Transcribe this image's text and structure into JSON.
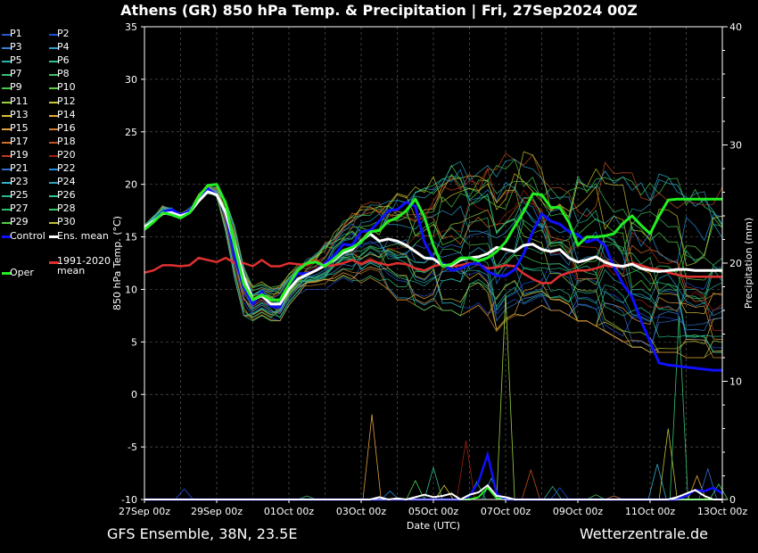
{
  "title": "Athens  (GR)  850 hPa Temp. & Precipitation | Fri, 27Sep2024 00Z",
  "footer": {
    "source": "GFS Ensemble, 38N, 23.5E",
    "site": "Wetterzentrale.de"
  },
  "colors": {
    "background": "#000000",
    "grid": "#555555",
    "control": "#1010ff",
    "ens_mean": "#ffffff",
    "climate": "#e03030",
    "oper": "#22ee22"
  },
  "legend": [
    {
      "label": "P1",
      "color": "#2a55d4"
    },
    {
      "label": "P2",
      "color": "#1a4fe0"
    },
    {
      "label": "P3",
      "color": "#3a7fd6"
    },
    {
      "label": "P4",
      "color": "#2a9fd0"
    },
    {
      "label": "P5",
      "color": "#2ab0a8"
    },
    {
      "label": "P6",
      "color": "#2fc090"
    },
    {
      "label": "P7",
      "color": "#36c270"
    },
    {
      "label": "P8",
      "color": "#40c060"
    },
    {
      "label": "P9",
      "color": "#46c84a"
    },
    {
      "label": "P10",
      "color": "#58d040"
    },
    {
      "label": "P11",
      "color": "#9cd040"
    },
    {
      "label": "P12",
      "color": "#c8c838"
    },
    {
      "label": "P13",
      "color": "#d8c030"
    },
    {
      "label": "P14",
      "color": "#e0a838"
    },
    {
      "label": "P15",
      "color": "#e0a040"
    },
    {
      "label": "P16",
      "color": "#d08030"
    },
    {
      "label": "P17",
      "color": "#d07028"
    },
    {
      "label": "P18",
      "color": "#c05020"
    },
    {
      "label": "P19",
      "color": "#c03818"
    },
    {
      "label": "P20",
      "color": "#a02010"
    },
    {
      "label": "P21",
      "color": "#3070d0"
    },
    {
      "label": "P22",
      "color": "#2090e0"
    },
    {
      "label": "P23",
      "color": "#30b0d0"
    },
    {
      "label": "P24",
      "color": "#30a0b8"
    },
    {
      "label": "P25",
      "color": "#28b890"
    },
    {
      "label": "P26",
      "color": "#30c890"
    },
    {
      "label": "P27",
      "color": "#28c070"
    },
    {
      "label": "P28",
      "color": "#38c860"
    },
    {
      "label": "P29",
      "color": "#50d048"
    },
    {
      "label": "P30",
      "color": "#c0c030"
    },
    {
      "label": "Control",
      "color": "#1010ff"
    },
    {
      "label": "Ens. mean",
      "color": "#ffffff"
    },
    {
      "label": "Oper",
      "color": "#22ee22"
    },
    {
      "label": "1991-2020 mean",
      "color": "#e03030"
    }
  ],
  "chart_data": {
    "type": "line",
    "ylabel": "850 hPa Temp. (°C)",
    "y2label": "Precipitation (mm)",
    "xlabel": "Date (UTC)",
    "ylim": [
      -10,
      35
    ],
    "y2lim": [
      0,
      40
    ],
    "yticks": [
      -10,
      -5,
      0,
      5,
      10,
      15,
      20,
      25,
      30,
      35
    ],
    "y2ticks": [
      0,
      10,
      20,
      30,
      40
    ],
    "x_ticks": [
      "27Sep 00z",
      "29Sep 00z",
      "01Oct 00z",
      "03Oct 00z",
      "05Oct 00z",
      "07Oct 00z",
      "09Oct 00z",
      "11Oct 00z",
      "13Oct 00z"
    ],
    "x_range_days": [
      0,
      16
    ],
    "grid": true,
    "x_days": [
      0,
      0.25,
      0.5,
      0.75,
      1,
      1.25,
      1.5,
      1.75,
      2,
      2.25,
      2.5,
      2.75,
      3,
      3.25,
      3.5,
      3.75,
      4,
      4.25,
      4.5,
      4.75,
      5,
      5.25,
      5.5,
      5.75,
      6,
      6.25,
      6.5,
      6.75,
      7,
      7.25,
      7.5,
      7.75,
      8,
      8.25,
      8.5,
      8.75,
      9,
      9.25,
      9.5,
      9.75,
      10,
      10.25,
      10.5,
      10.75,
      11,
      11.25,
      11.5,
      11.75,
      12,
      12.25,
      12.5,
      12.75,
      13,
      13.25,
      13.5,
      13.75,
      14,
      14.25,
      14.5,
      14.75,
      15,
      15.25,
      15.5,
      15.75,
      16
    ],
    "series": [
      {
        "name": "Control",
        "role": "control",
        "values": [
          15.8,
          16.5,
          17.4,
          17.6,
          17.1,
          17.5,
          18.7,
          19.6,
          19.0,
          17.2,
          13.0,
          10.2,
          8.6,
          9.8,
          8.4,
          8.3,
          10.5,
          11.5,
          11.5,
          11.8,
          12.5,
          13.2,
          14.3,
          14.2,
          15.5,
          15.6,
          16.5,
          17.5,
          17.6,
          18.3,
          17.9,
          14.5,
          12.9,
          12.5,
          11.8,
          12.0,
          12.4,
          12.5,
          11.7,
          11.3,
          11.3,
          11.9,
          13.4,
          15.5,
          17.2,
          16.5,
          16.2,
          15.5,
          15.2,
          14.5,
          14.8,
          14.2,
          12.1,
          10.5,
          9.3,
          7.0,
          5.0,
          3.0,
          2.8,
          2.7,
          2.6,
          2.5,
          2.4,
          2.3,
          2.3
        ]
      },
      {
        "name": "Ens. mean",
        "role": "mean",
        "values": [
          15.9,
          16.5,
          17.2,
          17.3,
          17.0,
          17.3,
          18.4,
          19.3,
          19.0,
          17.3,
          14.2,
          11.2,
          9.0,
          9.4,
          8.6,
          8.6,
          10.0,
          11.0,
          11.4,
          11.8,
          12.3,
          12.8,
          13.5,
          13.8,
          14.6,
          15.3,
          14.6,
          14.8,
          14.6,
          14.2,
          13.6,
          13.0,
          12.9,
          12.3,
          12.3,
          12.8,
          13.0,
          13.1,
          13.4,
          14.0,
          13.8,
          13.6,
          14.2,
          14.3,
          13.8,
          13.6,
          13.8,
          13.0,
          12.6,
          12.8,
          13.1,
          12.6,
          12.3,
          12.2,
          12.4,
          12.0,
          11.8,
          11.7,
          11.8,
          11.9,
          11.9,
          11.8,
          11.8,
          11.8,
          11.8
        ]
      },
      {
        "name": "Oper",
        "role": "oper",
        "values": [
          15.7,
          16.4,
          17.3,
          17.1,
          16.8,
          17.3,
          18.8,
          19.9,
          20.0,
          18.2,
          14.0,
          10.5,
          9.0,
          9.5,
          9.0,
          9.0,
          10.5,
          11.8,
          12.5,
          12.6,
          12.2,
          12.9,
          13.7,
          14.0,
          14.5,
          15.5,
          15.6,
          16.5,
          16.8,
          17.5,
          18.6,
          16.9,
          14.2,
          12.2,
          12.4,
          13.0,
          13.0,
          12.7,
          13.0,
          13.6,
          14.5,
          16.0,
          17.4,
          19.1,
          19.0,
          17.8,
          17.8,
          16.4,
          14.2,
          15.0,
          15.0,
          15.1,
          15.3,
          16.3,
          17.0,
          16.1,
          15.3,
          17.0,
          18.5,
          18.6,
          18.6,
          18.6,
          18.6,
          18.6,
          18.6
        ]
      },
      {
        "name": "1991-2020 mean",
        "role": "climate",
        "values": [
          11.6,
          11.8,
          12.3,
          12.3,
          12.2,
          12.3,
          13.0,
          12.8,
          12.6,
          13.0,
          12.5,
          12.5,
          12.2,
          12.8,
          12.2,
          12.2,
          12.5,
          12.4,
          12.3,
          12.8,
          12.2,
          12.3,
          12.5,
          12.8,
          12.4,
          12.8,
          12.5,
          12.3,
          12.5,
          12.4,
          12.0,
          11.8,
          12.2,
          12.4,
          12.2,
          12.3,
          12.5,
          12.4,
          12.0,
          12.1,
          12.3,
          12.2,
          11.5,
          11.0,
          10.6,
          10.6,
          11.3,
          11.6,
          11.8,
          11.8,
          12.0,
          12.3,
          12.1,
          12.2,
          12.5,
          12.3,
          12.0,
          11.9,
          11.6,
          11.4,
          11.2,
          11.2,
          11.2,
          11.2,
          11.2
        ]
      }
    ],
    "ensemble_spread": {
      "members": 30,
      "upper_envelope": [
        16.5,
        17.5,
        18.5,
        18.2,
        17.6,
        18.2,
        19.8,
        20.5,
        20.5,
        18.8,
        16.2,
        12.5,
        10.5,
        11.0,
        10.5,
        10.5,
        11.5,
        12.5,
        13.0,
        13.5,
        14.5,
        15.5,
        16.5,
        17.5,
        18.0,
        18.5,
        18.5,
        19.0,
        19.5,
        19.5,
        20.0,
        20.5,
        21.0,
        21.5,
        22.0,
        22.5,
        22.0,
        22.0,
        22.5,
        22.0,
        23.0,
        23.5,
        24.0,
        23.0,
        21.5,
        21.0,
        21.0,
        20.5,
        21.0,
        21.5,
        22.0,
        22.5,
        22.5,
        22.0,
        21.5,
        21.0,
        21.0,
        21.5,
        21.5,
        21.0,
        20.5,
        20.5,
        20.0,
        20.0,
        20.0
      ],
      "lower_envelope": [
        15.3,
        15.8,
        16.8,
        16.8,
        16.5,
        16.8,
        17.8,
        18.5,
        18.0,
        15.5,
        11.0,
        7.5,
        7.0,
        7.5,
        7.0,
        7.0,
        8.5,
        9.5,
        10.0,
        10.0,
        10.0,
        10.5,
        11.0,
        10.5,
        10.5,
        11.0,
        10.5,
        10.0,
        9.0,
        9.0,
        8.5,
        8.0,
        8.5,
        8.0,
        8.0,
        7.5,
        8.0,
        8.5,
        7.5,
        6.0,
        7.0,
        7.5,
        7.5,
        8.0,
        8.5,
        8.0,
        8.0,
        7.5,
        7.0,
        7.0,
        6.5,
        6.0,
        5.5,
        5.0,
        4.5,
        4.5,
        4.0,
        4.0,
        4.0,
        4.0,
        3.5,
        3.5,
        3.5,
        3.5,
        3.5
      ]
    },
    "precipitation": {
      "ens_mean_mm": [
        0,
        0,
        0,
        0,
        0,
        0,
        0,
        0,
        0,
        0,
        0,
        0,
        0,
        0,
        0,
        0,
        0,
        0,
        0,
        0,
        0,
        0,
        0,
        0,
        0,
        0,
        0.2,
        0,
        0.1,
        0,
        0.2,
        0.4,
        0.2,
        0.3,
        0.5,
        0,
        0.4,
        0.6,
        1.2,
        0.3,
        0.2,
        0,
        0,
        0,
        0,
        0,
        0,
        0,
        0,
        0,
        0,
        0,
        0,
        0,
        0,
        0,
        0,
        0,
        0,
        0.2,
        0.5,
        0.8,
        0.3,
        0,
        0
      ],
      "control_mm": [
        0,
        0,
        0,
        0,
        0,
        0,
        0,
        0,
        0,
        0,
        0,
        0,
        0,
        0,
        0,
        0,
        0,
        0,
        0,
        0,
        0,
        0,
        0,
        0,
        0,
        0,
        0,
        0,
        0,
        0,
        0,
        0,
        0,
        0,
        0,
        0,
        0.3,
        1.5,
        3.8,
        0.5,
        0,
        0,
        0,
        0,
        0,
        0,
        0,
        0,
        0,
        0,
        0,
        0,
        0,
        0,
        0,
        0,
        0,
        0,
        0,
        0,
        0.3,
        0.8,
        0.7,
        1.0,
        0.5
      ],
      "oper_mm": [
        0,
        0,
        0,
        0,
        0,
        0,
        0,
        0,
        0,
        0,
        0,
        0,
        0,
        0,
        0,
        0,
        0,
        0,
        0,
        0,
        0,
        0,
        0,
        0,
        0,
        0,
        0,
        0,
        0,
        0,
        0,
        0,
        0,
        0,
        0,
        0,
        0,
        0.2,
        1.0,
        0.1,
        0,
        0,
        0,
        0,
        0,
        0,
        0,
        0,
        0,
        0,
        0,
        0,
        0,
        0,
        0,
        0,
        0,
        0,
        0,
        0,
        0,
        0,
        0,
        0,
        0
      ],
      "member_spikes_mm": [
        {
          "day": 1.1,
          "mm": 0.9
        },
        {
          "day": 4.5,
          "mm": 0.3
        },
        {
          "day": 6.3,
          "mm": 7.2
        },
        {
          "day": 6.8,
          "mm": 0.7
        },
        {
          "day": 7.5,
          "mm": 1.6
        },
        {
          "day": 8.0,
          "mm": 2.7
        },
        {
          "day": 8.3,
          "mm": 1.2
        },
        {
          "day": 8.9,
          "mm": 5.0
        },
        {
          "day": 9.2,
          "mm": 1.5
        },
        {
          "day": 9.6,
          "mm": 1.8
        },
        {
          "day": 10.0,
          "mm": 17.3
        },
        {
          "day": 10.7,
          "mm": 2.5
        },
        {
          "day": 11.3,
          "mm": 1.1
        },
        {
          "day": 11.5,
          "mm": 1.0
        },
        {
          "day": 12.5,
          "mm": 0.4
        },
        {
          "day": 13.0,
          "mm": 0.3
        },
        {
          "day": 14.2,
          "mm": 3.0
        },
        {
          "day": 14.5,
          "mm": 6.0
        },
        {
          "day": 14.8,
          "mm": 15.5
        },
        {
          "day": 15.3,
          "mm": 2.0
        },
        {
          "day": 15.6,
          "mm": 2.6
        },
        {
          "day": 15.9,
          "mm": 1.3
        }
      ]
    }
  }
}
